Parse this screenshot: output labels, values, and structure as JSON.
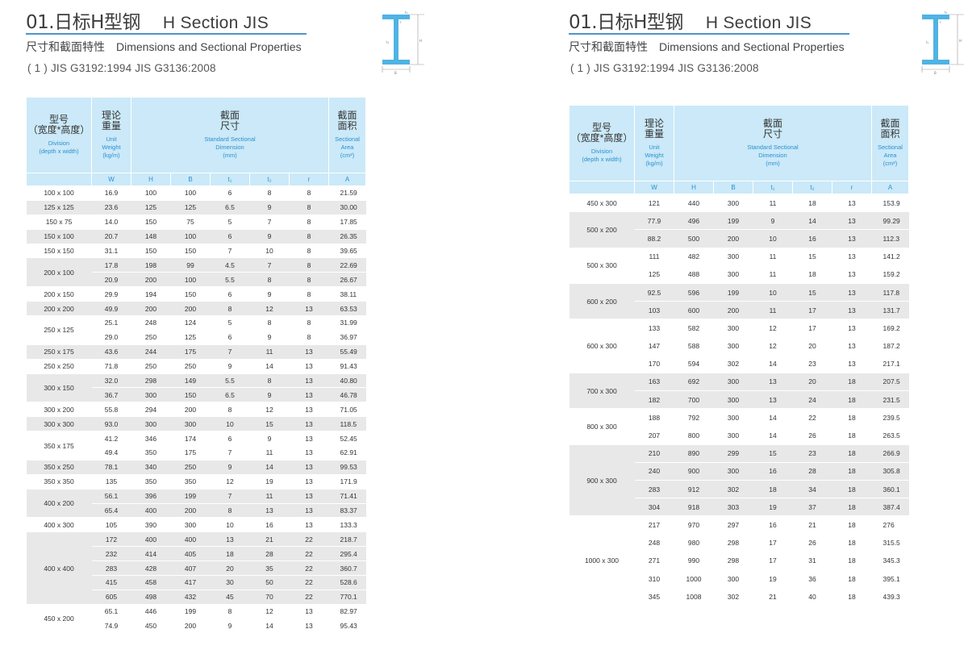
{
  "title_num": "01.日标H型钢",
  "title_en": "H Section JIS",
  "subtitle_zh": "尺寸和截面特性",
  "subtitle_en": "Dimensions and Sectional Properties",
  "standard": "( 1 ) JIS G3192:1994   JIS G3136:2008",
  "diagram": {
    "label_t2": "t₂",
    "label_t1": "t₁",
    "label_h": "H",
    "label_b": "B",
    "label_r": "r"
  },
  "headers": {
    "division_zh": "型号\n（宽度*高度）",
    "division_en": "Division\n(depth x width)",
    "weight_zh": "理论\n重量",
    "weight_en": "Unit\nWeight\n(kg/m)",
    "dim_zh": "截面\n尺寸",
    "dim_en": "Standard Sectional\nDimension\n(mm)",
    "area_zh": "截面\n面积",
    "area_en": "Sectional\nArea\n(cm²)",
    "sym_w": "W",
    "sym_h": "H",
    "sym_b": "B",
    "sym_t1": "t₁",
    "sym_t2": "t₂",
    "sym_r": "r",
    "sym_a": "A"
  },
  "left_groups": [
    {
      "division": "100 x 100",
      "rows": [
        [
          "16.9",
          "100",
          "100",
          "6",
          "8",
          "8",
          "21.59"
        ]
      ]
    },
    {
      "division": "125 x 125",
      "rows": [
        [
          "23.6",
          "125",
          "125",
          "6.5",
          "9",
          "8",
          "30.00"
        ]
      ]
    },
    {
      "division": "150 x 75",
      "rows": [
        [
          "14.0",
          "150",
          "75",
          "5",
          "7",
          "8",
          "17.85"
        ]
      ]
    },
    {
      "division": "150 x 100",
      "rows": [
        [
          "20.7",
          "148",
          "100",
          "6",
          "9",
          "8",
          "26.35"
        ]
      ]
    },
    {
      "division": "150 x 150",
      "rows": [
        [
          "31.1",
          "150",
          "150",
          "7",
          "10",
          "8",
          "39.65"
        ]
      ]
    },
    {
      "division": "200 x 100",
      "rows": [
        [
          "17.8",
          "198",
          "99",
          "4.5",
          "7",
          "8",
          "22.69"
        ],
        [
          "20.9",
          "200",
          "100",
          "5.5",
          "8",
          "8",
          "26.67"
        ]
      ]
    },
    {
      "division": "200 x 150",
      "rows": [
        [
          "29.9",
          "194",
          "150",
          "6",
          "9",
          "8",
          "38.11"
        ]
      ]
    },
    {
      "division": "200 x 200",
      "rows": [
        [
          "49.9",
          "200",
          "200",
          "8",
          "12",
          "13",
          "63.53"
        ]
      ]
    },
    {
      "division": "250 x 125",
      "rows": [
        [
          "25.1",
          "248",
          "124",
          "5",
          "8",
          "8",
          "31.99"
        ],
        [
          "29.0",
          "250",
          "125",
          "6",
          "9",
          "8",
          "36.97"
        ]
      ]
    },
    {
      "division": "250 x 175",
      "rows": [
        [
          "43.6",
          "244",
          "175",
          "7",
          "11",
          "13",
          "55.49"
        ]
      ]
    },
    {
      "division": "250 x 250",
      "rows": [
        [
          "71.8",
          "250",
          "250",
          "9",
          "14",
          "13",
          "91.43"
        ]
      ]
    },
    {
      "division": "300 x 150",
      "rows": [
        [
          "32.0",
          "298",
          "149",
          "5.5",
          "8",
          "13",
          "40.80"
        ],
        [
          "36.7",
          "300",
          "150",
          "6.5",
          "9",
          "13",
          "46.78"
        ]
      ]
    },
    {
      "division": "300 x 200",
      "rows": [
        [
          "55.8",
          "294",
          "200",
          "8",
          "12",
          "13",
          "71.05"
        ]
      ]
    },
    {
      "division": "300 x 300",
      "rows": [
        [
          "93.0",
          "300",
          "300",
          "10",
          "15",
          "13",
          "118.5"
        ]
      ]
    },
    {
      "division": "350 x 175",
      "rows": [
        [
          "41.2",
          "346",
          "174",
          "6",
          "9",
          "13",
          "52.45"
        ],
        [
          "49.4",
          "350",
          "175",
          "7",
          "11",
          "13",
          "62.91"
        ]
      ]
    },
    {
      "division": "350 x 250",
      "rows": [
        [
          "78.1",
          "340",
          "250",
          "9",
          "14",
          "13",
          "99.53"
        ]
      ]
    },
    {
      "division": "350 x 350",
      "rows": [
        [
          "135",
          "350",
          "350",
          "12",
          "19",
          "13",
          "171.9"
        ]
      ]
    },
    {
      "division": "400 x 200",
      "rows": [
        [
          "56.1",
          "396",
          "199",
          "7",
          "11",
          "13",
          "71.41"
        ],
        [
          "65.4",
          "400",
          "200",
          "8",
          "13",
          "13",
          "83.37"
        ]
      ]
    },
    {
      "division": "400 x 300",
      "rows": [
        [
          "105",
          "390",
          "300",
          "10",
          "16",
          "13",
          "133.3"
        ]
      ]
    },
    {
      "division": "400 x 400",
      "rows": [
        [
          "172",
          "400",
          "400",
          "13",
          "21",
          "22",
          "218.7"
        ],
        [
          "232",
          "414",
          "405",
          "18",
          "28",
          "22",
          "295.4"
        ],
        [
          "283",
          "428",
          "407",
          "20",
          "35",
          "22",
          "360.7"
        ],
        [
          "415",
          "458",
          "417",
          "30",
          "50",
          "22",
          "528.6"
        ],
        [
          "605",
          "498",
          "432",
          "45",
          "70",
          "22",
          "770.1"
        ]
      ]
    },
    {
      "division": "450 x 200",
      "rows": [
        [
          "65.1",
          "446",
          "199",
          "8",
          "12",
          "13",
          "82.97"
        ],
        [
          "74.9",
          "450",
          "200",
          "9",
          "14",
          "13",
          "95.43"
        ]
      ]
    }
  ],
  "right_groups": [
    {
      "division": "450 x 300",
      "rows": [
        [
          "121",
          "440",
          "300",
          "11",
          "18",
          "13",
          "153.9"
        ]
      ]
    },
    {
      "division": "500 x 200",
      "rows": [
        [
          "77.9",
          "496",
          "199",
          "9",
          "14",
          "13",
          "99.29"
        ],
        [
          "88.2",
          "500",
          "200",
          "10",
          "16",
          "13",
          "112.3"
        ]
      ]
    },
    {
      "division": "500 x 300",
      "rows": [
        [
          "111",
          "482",
          "300",
          "11",
          "15",
          "13",
          "141.2"
        ],
        [
          "125",
          "488",
          "300",
          "11",
          "18",
          "13",
          "159.2"
        ]
      ]
    },
    {
      "division": "600 x 200",
      "rows": [
        [
          "92.5",
          "596",
          "199",
          "10",
          "15",
          "13",
          "117.8"
        ],
        [
          "103",
          "600",
          "200",
          "11",
          "17",
          "13",
          "131.7"
        ]
      ]
    },
    {
      "division": "600 x 300",
      "rows": [
        [
          "133",
          "582",
          "300",
          "12",
          "17",
          "13",
          "169.2"
        ],
        [
          "147",
          "588",
          "300",
          "12",
          "20",
          "13",
          "187.2"
        ],
        [
          "170",
          "594",
          "302",
          "14",
          "23",
          "13",
          "217.1"
        ]
      ]
    },
    {
      "division": "700 x 300",
      "rows": [
        [
          "163",
          "692",
          "300",
          "13",
          "20",
          "18",
          "207.5"
        ],
        [
          "182",
          "700",
          "300",
          "13",
          "24",
          "18",
          "231.5"
        ]
      ]
    },
    {
      "division": "800 x 300",
      "rows": [
        [
          "188",
          "792",
          "300",
          "14",
          "22",
          "18",
          "239.5"
        ],
        [
          "207",
          "800",
          "300",
          "14",
          "26",
          "18",
          "263.5"
        ]
      ]
    },
    {
      "division": "900 x 300",
      "rows": [
        [
          "210",
          "890",
          "299",
          "15",
          "23",
          "18",
          "266.9"
        ],
        [
          "240",
          "900",
          "300",
          "16",
          "28",
          "18",
          "305.8"
        ],
        [
          "283",
          "912",
          "302",
          "18",
          "34",
          "18",
          "360.1"
        ],
        [
          "304",
          "918",
          "303",
          "19",
          "37",
          "18",
          "387.4"
        ]
      ]
    },
    {
      "division": "1000 x 300",
      "rows": [
        [
          "217",
          "970",
          "297",
          "16",
          "21",
          "18",
          "276"
        ],
        [
          "248",
          "980",
          "298",
          "17",
          "26",
          "18",
          "315.5"
        ],
        [
          "271",
          "990",
          "298",
          "17",
          "31",
          "18",
          "345.3"
        ],
        [
          "310",
          "1000",
          "300",
          "19",
          "36",
          "18",
          "395.1"
        ],
        [
          "345",
          "1008",
          "302",
          "21",
          "40",
          "18",
          "439.3"
        ]
      ]
    }
  ]
}
